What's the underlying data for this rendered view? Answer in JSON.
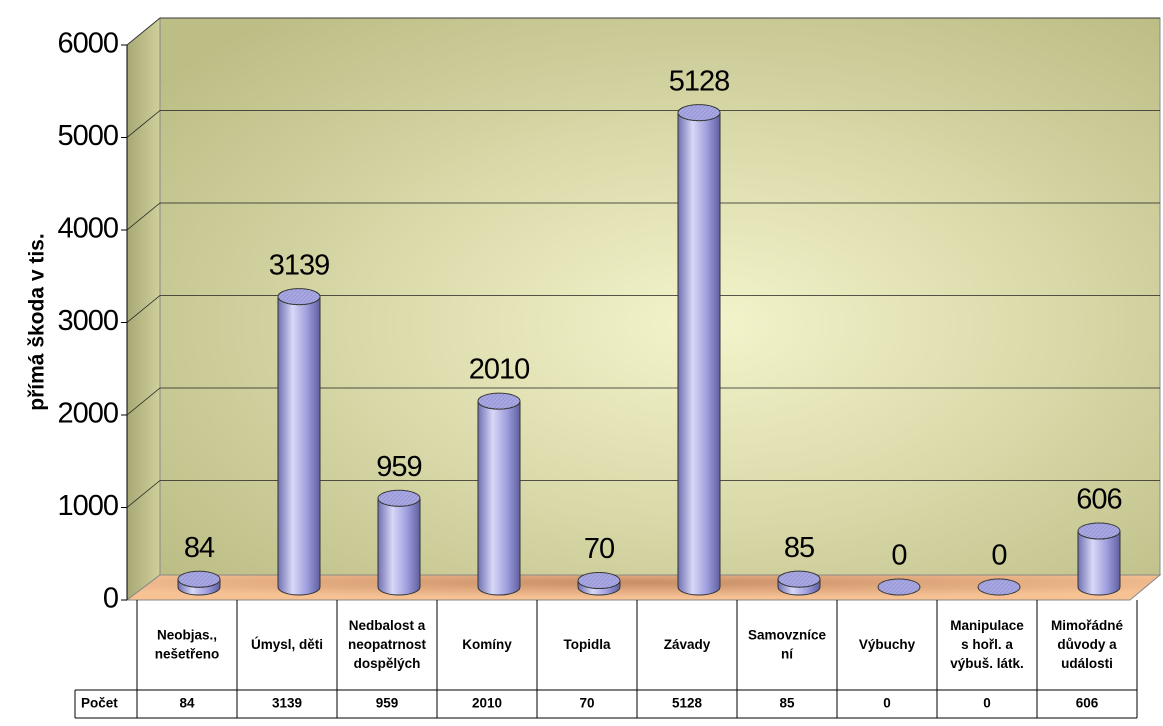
{
  "chart_data": {
    "type": "bar3d",
    "y_label": "přímá škoda v tis.",
    "categories": [
      "Neobjas.,\nnešetřeno",
      "Úmysl, děti",
      "Nedbalost a\nneopatrnost\ndospělých",
      "Komíny",
      "Topidla",
      "Závady",
      "Samovzníce\nní",
      "Výbuchy",
      "Manipulace\ns hořl. a\nvýbuš. látk.",
      "Mimořádné\ndůvody a\nudálosti"
    ],
    "series": [
      {
        "name": "Počet",
        "color": "#9c9cdc",
        "values": [
          84,
          3139,
          959,
          2010,
          70,
          5128,
          85,
          0,
          0,
          606
        ]
      }
    ],
    "ylim": [
      0,
      6000
    ],
    "yticks": [
      0,
      1000,
      2000,
      3000,
      4000,
      5000,
      6000
    ],
    "grid": true
  }
}
